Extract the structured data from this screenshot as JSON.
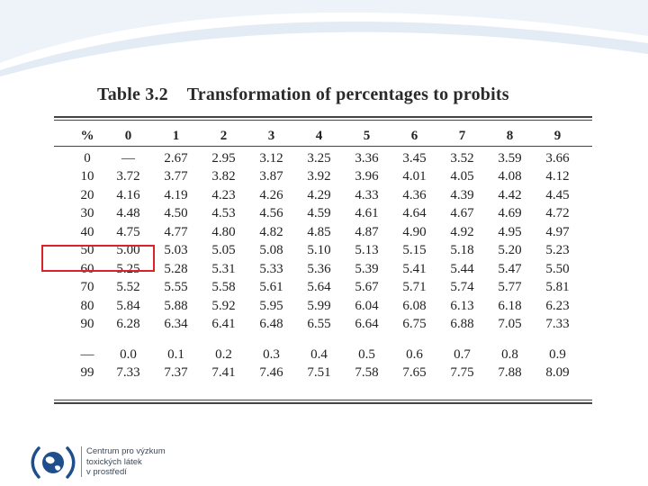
{
  "caption": {
    "number": "Table 3.2",
    "title": "Transformation of percentages to probits"
  },
  "table": {
    "headers": [
      "%",
      "0",
      "1",
      "2",
      "3",
      "4",
      "5",
      "6",
      "7",
      "8",
      "9"
    ],
    "rows": [
      [
        "0",
        "—",
        "2.67",
        "2.95",
        "3.12",
        "3.25",
        "3.36",
        "3.45",
        "3.52",
        "3.59",
        "3.66"
      ],
      [
        "10",
        "3.72",
        "3.77",
        "3.82",
        "3.87",
        "3.92",
        "3.96",
        "4.01",
        "4.05",
        "4.08",
        "4.12"
      ],
      [
        "20",
        "4.16",
        "4.19",
        "4.23",
        "4.26",
        "4.29",
        "4.33",
        "4.36",
        "4.39",
        "4.42",
        "4.45"
      ],
      [
        "30",
        "4.48",
        "4.50",
        "4.53",
        "4.56",
        "4.59",
        "4.61",
        "4.64",
        "4.67",
        "4.69",
        "4.72"
      ],
      [
        "40",
        "4.75",
        "4.77",
        "4.80",
        "4.82",
        "4.85",
        "4.87",
        "4.90",
        "4.92",
        "4.95",
        "4.97"
      ],
      [
        "50",
        "5.00",
        "5.03",
        "5.05",
        "5.08",
        "5.10",
        "5.13",
        "5.15",
        "5.18",
        "5.20",
        "5.23"
      ],
      [
        "60",
        "5.25",
        "5.28",
        "5.31",
        "5.33",
        "5.36",
        "5.39",
        "5.41",
        "5.44",
        "5.47",
        "5.50"
      ],
      [
        "70",
        "5.52",
        "5.55",
        "5.58",
        "5.61",
        "5.64",
        "5.67",
        "5.71",
        "5.74",
        "5.77",
        "5.81"
      ],
      [
        "80",
        "5.84",
        "5.88",
        "5.92",
        "5.95",
        "5.99",
        "6.04",
        "6.08",
        "6.13",
        "6.18",
        "6.23"
      ],
      [
        "90",
        "6.28",
        "6.34",
        "6.41",
        "6.48",
        "6.55",
        "6.64",
        "6.75",
        "6.88",
        "7.05",
        "7.33"
      ]
    ],
    "extra_rows": [
      [
        "—",
        "0.0",
        "0.1",
        "0.2",
        "0.3",
        "0.4",
        "0.5",
        "0.6",
        "0.7",
        "0.8",
        "0.9"
      ],
      [
        "99",
        "7.33",
        "7.37",
        "7.41",
        "7.46",
        "7.51",
        "7.58",
        "7.65",
        "7.75",
        "7.88",
        "8.09"
      ]
    ],
    "highlighted_row": "50",
    "highlight_color": "#d9222a"
  },
  "footer": {
    "lines": [
      "Centrum pro výzkum",
      "toxických látek",
      "v prostředí"
    ],
    "logo_icon": "globe-in-parentheses-icon"
  },
  "colors": {
    "swoosh": "#dce6f2",
    "footer_text": "#3c4a5a"
  }
}
